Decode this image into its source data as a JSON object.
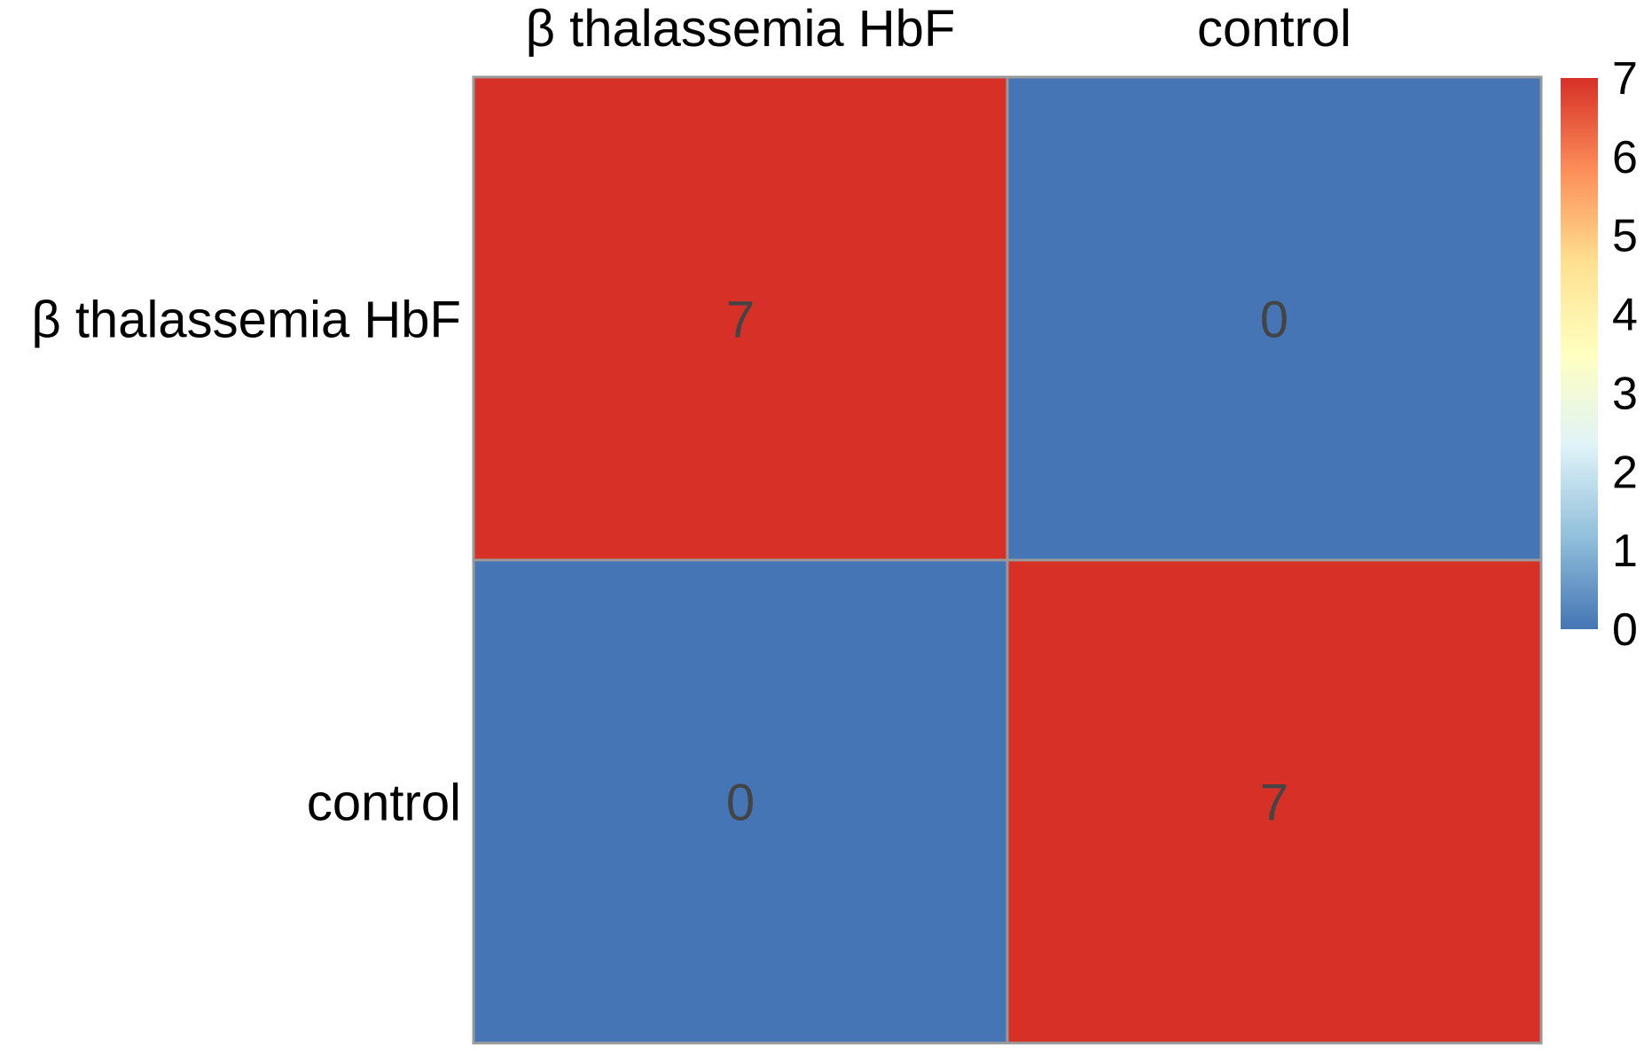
{
  "chart_data": {
    "type": "heatmap",
    "rows": [
      "β thalassemia HbF",
      "control"
    ],
    "columns": [
      "β thalassemia HbF",
      "control"
    ],
    "values": [
      [
        7,
        0
      ],
      [
        0,
        7
      ]
    ],
    "cell_labels": [
      [
        "7",
        "0"
      ],
      [
        "0",
        "7"
      ]
    ],
    "value_range": [
      0,
      7
    ],
    "legend": {
      "placement": "right",
      "ticks": [
        "0",
        "1",
        "2",
        "3",
        "4",
        "5",
        "6",
        "7"
      ],
      "colors": [
        "#4575B4",
        "#91BFDB",
        "#E0F3F8",
        "#FFFFBF",
        "#FEE090",
        "#FC8D59",
        "#D73027"
      ]
    },
    "grid_color": "#999999"
  }
}
